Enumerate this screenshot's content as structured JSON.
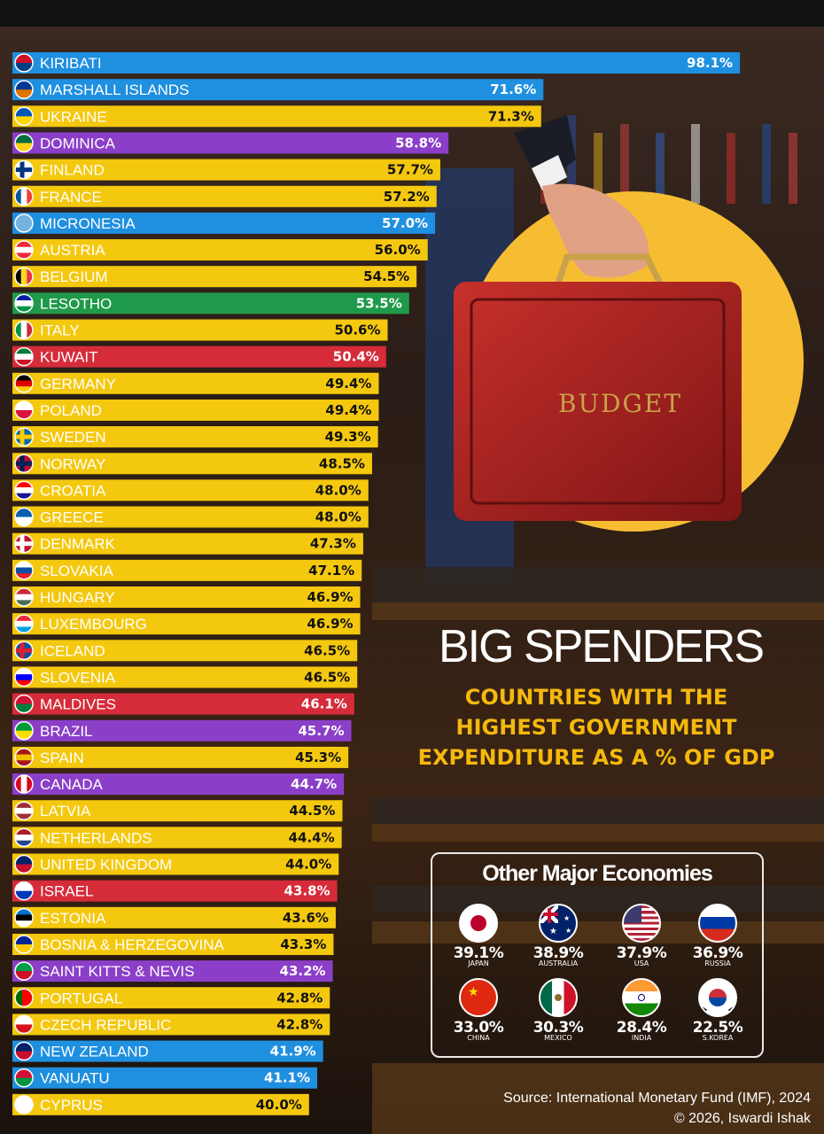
{
  "title": "BIG SPENDERS",
  "subtitle_lines": [
    "COUNTRIES WITH THE",
    "HIGHEST GOVERNMENT",
    "EXPENDITURE AS A % OF GDP"
  ],
  "budget_case_text": "BUDGET",
  "colors": {
    "blue": "#1f8fe0",
    "yellow": "#f4c80e",
    "purple": "#8b3fc8",
    "red": "#d62c3a",
    "green": "#1f9a4a",
    "accent": "#f5b90d",
    "circle": "#f7bd32"
  },
  "chart_data": {
    "type": "bar",
    "orientation": "horizontal",
    "value_suffix": "%",
    "xlim": [
      0,
      100
    ],
    "bars": [
      {
        "country": "KIRIBATI",
        "value": 98.1,
        "label": "98.1%",
        "color": "blue",
        "flag": "kiribati-flag-icon"
      },
      {
        "country": "MARSHALL ISLANDS",
        "value": 71.6,
        "label": "71.6%",
        "color": "blue",
        "flag": "marshall-islands-flag-icon"
      },
      {
        "country": "UKRAINE",
        "value": 71.3,
        "label": "71.3%",
        "color": "yellow",
        "flag": "ukraine-flag-icon"
      },
      {
        "country": "DOMINICA",
        "value": 58.8,
        "label": "58.8%",
        "color": "purple",
        "flag": "dominica-flag-icon"
      },
      {
        "country": "FINLAND",
        "value": 57.7,
        "label": "57.7%",
        "color": "yellow",
        "flag": "finland-flag-icon"
      },
      {
        "country": "FRANCE",
        "value": 57.2,
        "label": "57.2%",
        "color": "yellow",
        "flag": "france-flag-icon"
      },
      {
        "country": "MICRONESIA",
        "value": 57.0,
        "label": "57.0%",
        "color": "blue",
        "flag": "micronesia-flag-icon"
      },
      {
        "country": "AUSTRIA",
        "value": 56.0,
        "label": "56.0%",
        "color": "yellow",
        "flag": "austria-flag-icon"
      },
      {
        "country": "BELGIUM",
        "value": 54.5,
        "label": "54.5%",
        "color": "yellow",
        "flag": "belgium-flag-icon"
      },
      {
        "country": "LESOTHO",
        "value": 53.5,
        "label": "53.5%",
        "color": "green",
        "flag": "lesotho-flag-icon"
      },
      {
        "country": "ITALY",
        "value": 50.6,
        "label": "50.6%",
        "color": "yellow",
        "flag": "italy-flag-icon"
      },
      {
        "country": "KUWAIT",
        "value": 50.4,
        "label": "50.4%",
        "color": "red",
        "flag": "kuwait-flag-icon"
      },
      {
        "country": "GERMANY",
        "value": 49.4,
        "label": "49.4%",
        "color": "yellow",
        "flag": "germany-flag-icon"
      },
      {
        "country": "POLAND",
        "value": 49.4,
        "label": "49.4%",
        "color": "yellow",
        "flag": "poland-flag-icon"
      },
      {
        "country": "SWEDEN",
        "value": 49.3,
        "label": "49.3%",
        "color": "yellow",
        "flag": "sweden-flag-icon"
      },
      {
        "country": "NORWAY",
        "value": 48.5,
        "label": "48.5%",
        "color": "yellow",
        "flag": "norway-flag-icon"
      },
      {
        "country": "CROATIA",
        "value": 48.0,
        "label": "48.0%",
        "color": "yellow",
        "flag": "croatia-flag-icon"
      },
      {
        "country": "GREECE",
        "value": 48.0,
        "label": "48.0%",
        "color": "yellow",
        "flag": "greece-flag-icon"
      },
      {
        "country": "DENMARK",
        "value": 47.3,
        "label": "47.3%",
        "color": "yellow",
        "flag": "denmark-flag-icon"
      },
      {
        "country": "SLOVAKIA",
        "value": 47.1,
        "label": "47.1%",
        "color": "yellow",
        "flag": "slovakia-flag-icon"
      },
      {
        "country": "HUNGARY",
        "value": 46.9,
        "label": "46.9%",
        "color": "yellow",
        "flag": "hungary-flag-icon"
      },
      {
        "country": "LUXEMBOURG",
        "value": 46.9,
        "label": "46.9%",
        "color": "yellow",
        "flag": "luxembourg-flag-icon"
      },
      {
        "country": "ICELAND",
        "value": 46.5,
        "label": "46.5%",
        "color": "yellow",
        "flag": "iceland-flag-icon"
      },
      {
        "country": "SLOVENIA",
        "value": 46.5,
        "label": "46.5%",
        "color": "yellow",
        "flag": "slovenia-flag-icon"
      },
      {
        "country": "MALDIVES",
        "value": 46.1,
        "label": "46.1%",
        "color": "red",
        "flag": "maldives-flag-icon"
      },
      {
        "country": "BRAZIL",
        "value": 45.7,
        "label": "45.7%",
        "color": "purple",
        "flag": "brazil-flag-icon"
      },
      {
        "country": "SPAIN",
        "value": 45.3,
        "label": "45.3%",
        "color": "yellow",
        "flag": "spain-flag-icon"
      },
      {
        "country": "CANADA",
        "value": 44.7,
        "label": "44.7%",
        "color": "purple",
        "flag": "canada-flag-icon"
      },
      {
        "country": "LATVIA",
        "value": 44.5,
        "label": "44.5%",
        "color": "yellow",
        "flag": "latvia-flag-icon"
      },
      {
        "country": "NETHERLANDS",
        "value": 44.4,
        "label": "44.4%",
        "color": "yellow",
        "flag": "netherlands-flag-icon"
      },
      {
        "country": "UNITED KINGDOM",
        "value": 44.0,
        "label": "44.0%",
        "color": "yellow",
        "flag": "united-kingdom-flag-icon"
      },
      {
        "country": "ISRAEL",
        "value": 43.8,
        "label": "43.8%",
        "color": "red",
        "flag": "israel-flag-icon"
      },
      {
        "country": "ESTONIA",
        "value": 43.6,
        "label": "43.6%",
        "color": "yellow",
        "flag": "estonia-flag-icon"
      },
      {
        "country": "BOSNIA & HERZEGOVINA",
        "value": 43.3,
        "label": "43.3%",
        "color": "yellow",
        "flag": "bosnia-flag-icon"
      },
      {
        "country": "SAINT KITTS & NEVIS",
        "value": 43.2,
        "label": "43.2%",
        "color": "purple",
        "flag": "saint-kitts-flag-icon"
      },
      {
        "country": "PORTUGAL",
        "value": 42.8,
        "label": "42.8%",
        "color": "yellow",
        "flag": "portugal-flag-icon"
      },
      {
        "country": "CZECH REPUBLIC",
        "value": 42.8,
        "label": "42.8%",
        "color": "yellow",
        "flag": "czech-republic-flag-icon"
      },
      {
        "country": "NEW ZEALAND",
        "value": 41.9,
        "label": "41.9%",
        "color": "blue",
        "flag": "new-zealand-flag-icon"
      },
      {
        "country": "VANUATU",
        "value": 41.1,
        "label": "41.1%",
        "color": "blue",
        "flag": "vanuatu-flag-icon"
      },
      {
        "country": "CYPRUS",
        "value": 40.0,
        "label": "40.0%",
        "color": "yellow",
        "flag": "cyprus-flag-icon"
      }
    ]
  },
  "other_economies": {
    "title": "Other Major Economies",
    "items": [
      {
        "country": "JAPAN",
        "value": "39.1%",
        "flag": "japan-flag-icon"
      },
      {
        "country": "AUSTRALIA",
        "value": "38.9%",
        "flag": "australia-flag-icon"
      },
      {
        "country": "USA",
        "value": "37.9%",
        "flag": "usa-flag-icon"
      },
      {
        "country": "RUSSIA",
        "value": "36.9%",
        "flag": "russia-flag-icon"
      },
      {
        "country": "CHINA",
        "value": "33.0%",
        "flag": "china-flag-icon"
      },
      {
        "country": "MEXICO",
        "value": "30.3%",
        "flag": "mexico-flag-icon"
      },
      {
        "country": "INDIA",
        "value": "28.4%",
        "flag": "india-flag-icon"
      },
      {
        "country": "S.KOREA",
        "value": "22.5%",
        "flag": "south-korea-flag-icon"
      }
    ]
  },
  "source": "Source: International Monetary Fund (IMF), 2024",
  "credit": "© 2026, Iswardi Ishak"
}
